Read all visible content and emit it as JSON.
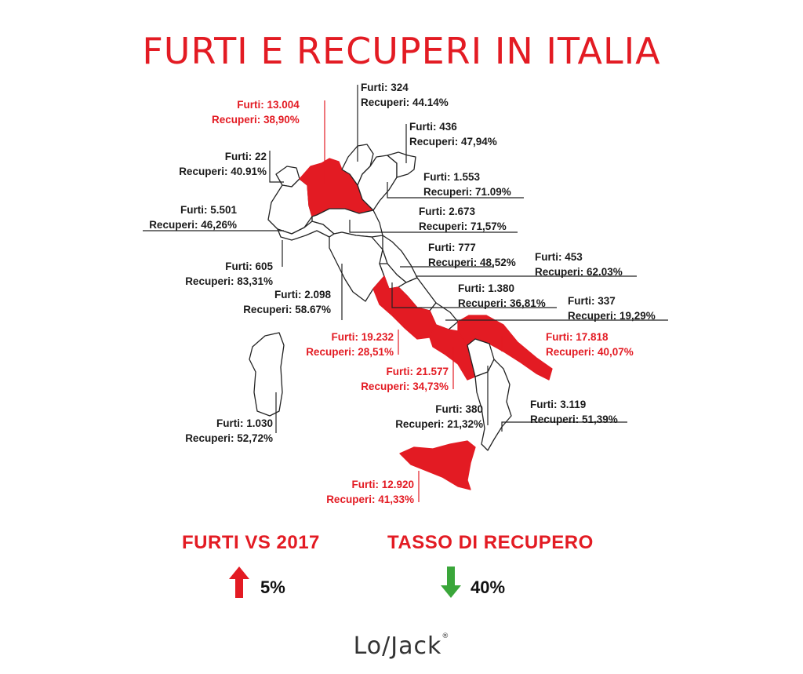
{
  "title": "FURTI E RECUPERI IN ITALIA",
  "colors": {
    "accent": "#e31b23",
    "down": "#3aa63a",
    "text": "#1a1a1a"
  },
  "regions": [
    {
      "id": "lombardia",
      "furti": "Furti: 13.004",
      "recuperi": "Recuperi: 38,90%",
      "highlight": true
    },
    {
      "id": "trentino",
      "furti": "Furti: 324",
      "recuperi": "Recuperi: 44.14%",
      "highlight": false
    },
    {
      "id": "friuli",
      "furti": "Furti: 436",
      "recuperi": "Recuperi: 47,94%",
      "highlight": false
    },
    {
      "id": "valle-aosta",
      "furti": "Furti: 22",
      "recuperi": "Recuperi: 40.91%",
      "highlight": false
    },
    {
      "id": "veneto",
      "furti": "Furti: 1.553",
      "recuperi": "Recuperi: 71.09%",
      "highlight": false
    },
    {
      "id": "piemonte",
      "furti": "Furti: 5.501",
      "recuperi": "Recuperi: 46,26%",
      "highlight": false
    },
    {
      "id": "emilia",
      "furti": "Furti: 2.673",
      "recuperi": "Recuperi: 71,57%",
      "highlight": false
    },
    {
      "id": "marche",
      "furti": "Furti: 777",
      "recuperi": "Recuperi: 48,52%",
      "highlight": false
    },
    {
      "id": "liguria",
      "furti": "Furti: 605",
      "recuperi": "Recuperi: 83,31%",
      "highlight": false
    },
    {
      "id": "abruzzo",
      "furti": "Furti: 453",
      "recuperi": "Recuperi: 62.03%",
      "highlight": false
    },
    {
      "id": "umbria",
      "furti": "Furti: 1.380",
      "recuperi": "Recuperi: 36,81%",
      "highlight": false
    },
    {
      "id": "toscana",
      "furti": "Furti: 2.098",
      "recuperi": "Recuperi:  58.67%",
      "highlight": false
    },
    {
      "id": "molise",
      "furti": "Furti: 337",
      "recuperi": "Recuperi: 19,29%",
      "highlight": false
    },
    {
      "id": "lazio",
      "furti": "Furti: 19.232",
      "recuperi": "Recuperi: 28,51%",
      "highlight": true
    },
    {
      "id": "puglia",
      "furti": "Furti: 17.818",
      "recuperi": "Recuperi: 40,07%",
      "highlight": true
    },
    {
      "id": "campania",
      "furti": "Furti: 21.577",
      "recuperi": "Recuperi: 34,73%",
      "highlight": true
    },
    {
      "id": "calabria",
      "furti": "Furti: 3.119",
      "recuperi": "Recuperi: 51,39%",
      "highlight": false
    },
    {
      "id": "basilicata",
      "furti": "Furti: 380",
      "recuperi": "Recuperi: 21,32%",
      "highlight": false
    },
    {
      "id": "sardegna",
      "furti": "Furti: 1.030",
      "recuperi": "Recuperi: 52,72%",
      "highlight": false
    },
    {
      "id": "sicilia",
      "furti": "Furti: 12.920",
      "recuperi": "Recuperi: 41,33%",
      "highlight": true
    }
  ],
  "stats": {
    "furti_label": "FURTI VS 2017",
    "furti_value": "5%",
    "furti_trend": "up-arrow",
    "tasso_label": "TASSO DI  RECUPERO",
    "tasso_value": "40%",
    "tasso_trend": "down-arrow"
  },
  "logo": {
    "text": "Lo/Jack",
    "mark": "®"
  }
}
